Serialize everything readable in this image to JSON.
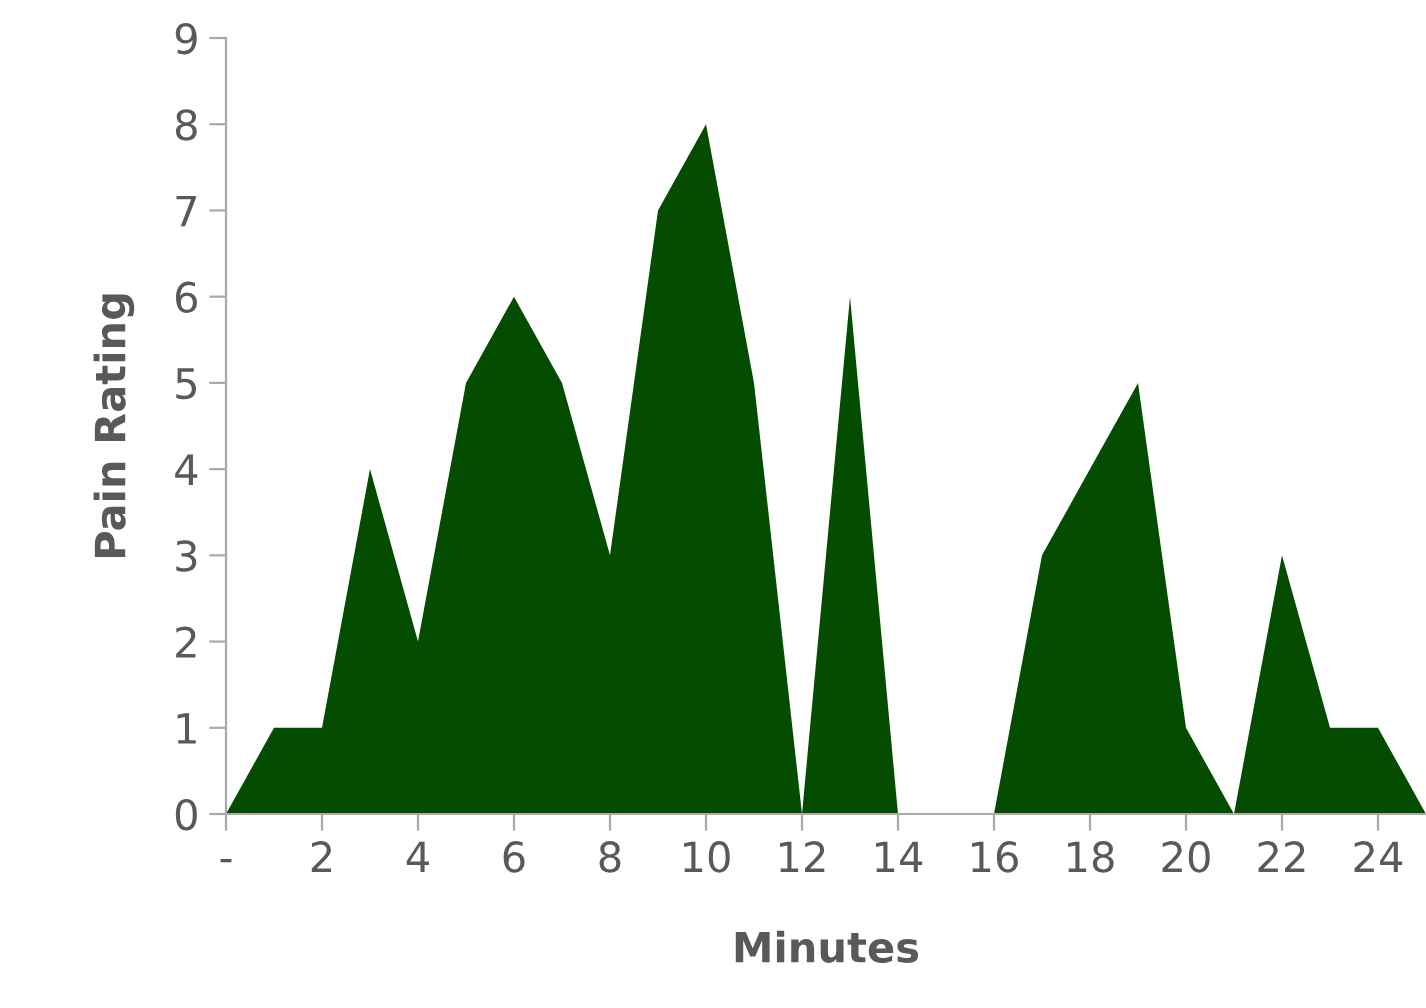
{
  "chart_data": {
    "type": "area",
    "xlabel": "Minutes",
    "ylabel": "Pain Rating",
    "x": [
      0,
      1,
      2,
      3,
      4,
      5,
      6,
      7,
      8,
      9,
      10,
      11,
      12,
      13,
      14,
      15,
      16,
      17,
      18,
      19,
      20,
      21,
      22,
      23,
      24,
      25
    ],
    "series": [
      {
        "color": "#034c00",
        "values": [
          0,
          1,
          1,
          4,
          2,
          5,
          6,
          5,
          3,
          7,
          8,
          5,
          0,
          6,
          0,
          0,
          0,
          3,
          4,
          5,
          1,
          0,
          3,
          1,
          1,
          0
        ]
      }
    ],
    "xlim": [
      0,
      25
    ],
    "xticks": [
      {
        "value": 0,
        "label": "-"
      },
      2,
      4,
      6,
      8,
      10,
      12,
      14,
      16,
      18,
      20,
      22,
      24
    ],
    "ylim": [
      0,
      9
    ],
    "yticks": [
      0,
      1,
      2,
      3,
      4,
      5,
      6,
      7,
      8,
      9
    ],
    "grid": false,
    "legend": false
  }
}
